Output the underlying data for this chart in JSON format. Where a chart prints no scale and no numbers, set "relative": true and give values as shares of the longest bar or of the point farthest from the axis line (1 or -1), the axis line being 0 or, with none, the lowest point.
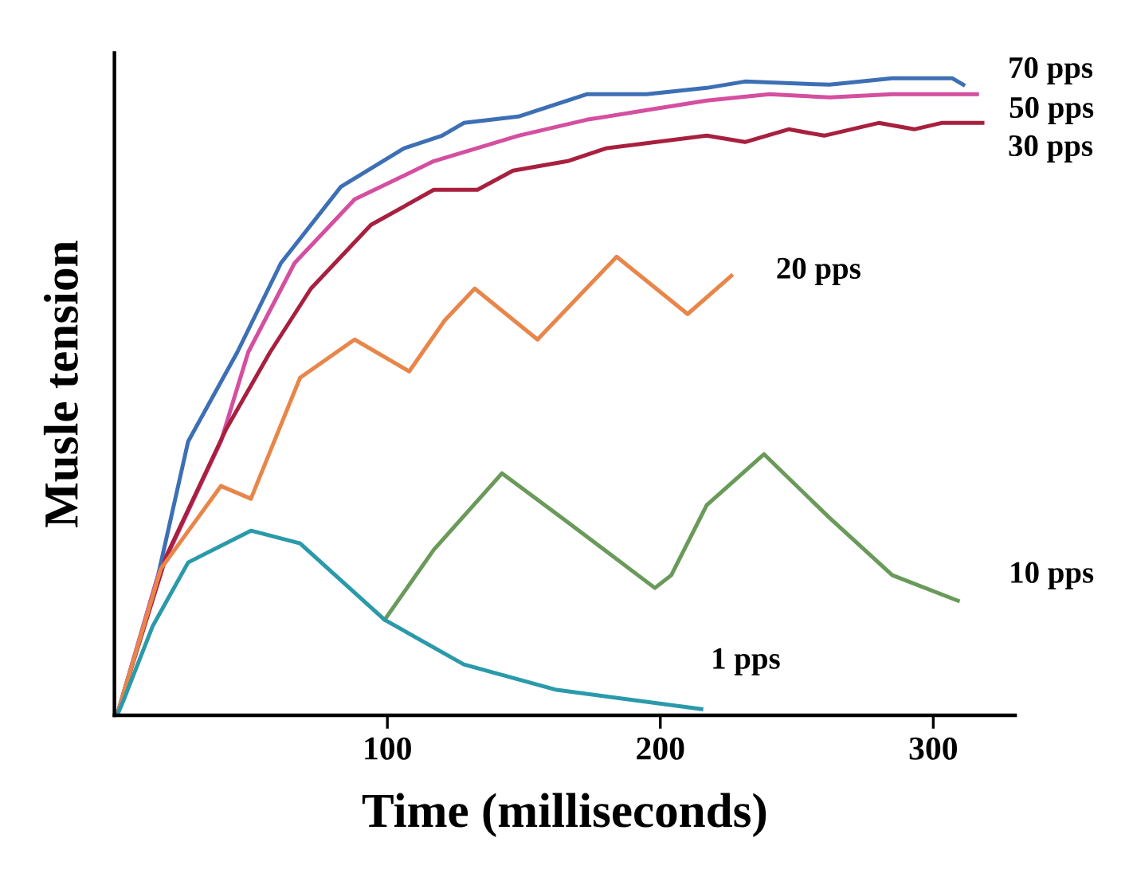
{
  "chart_data": {
    "type": "line",
    "relative": true,
    "xlabel": "Time (milliseconds)",
    "ylabel": "Musle tension",
    "xlim": [
      0,
      330
    ],
    "xticks": [
      100,
      200,
      300
    ],
    "grid": false,
    "legend": false,
    "marker": "none",
    "line_style": "solid",
    "series": [
      {
        "name": "70 pps",
        "color": "#3d6fb4",
        "x": [
          1,
          3,
          16,
          27,
          45,
          61,
          83,
          106,
          120,
          128,
          148,
          173,
          195,
          217,
          231,
          262,
          285,
          307,
          311
        ],
        "values": [
          0,
          0.03,
          0.22,
          0.43,
          0.57,
          0.71,
          0.83,
          0.89,
          0.91,
          0.93,
          0.94,
          0.975,
          0.975,
          0.985,
          0.995,
          0.99,
          1.0,
          1.0,
          0.99
        ]
      },
      {
        "name": "50 pps",
        "color": "#d44fa0",
        "x": [
          1,
          3,
          16,
          39,
          49,
          66,
          88,
          117,
          148,
          173,
          195,
          217,
          240,
          262,
          285,
          316
        ],
        "values": [
          0,
          0.03,
          0.22,
          0.43,
          0.57,
          0.71,
          0.81,
          0.87,
          0.91,
          0.935,
          0.95,
          0.965,
          0.975,
          0.97,
          0.975,
          0.975
        ]
      },
      {
        "name": "30 pps",
        "color": "#a8203f",
        "x": [
          1,
          3,
          19,
          41,
          57,
          72,
          94,
          117,
          133,
          146,
          166,
          180,
          217,
          231,
          247,
          260,
          280,
          293,
          303,
          318
        ],
        "values": [
          0,
          0.03,
          0.25,
          0.45,
          0.57,
          0.67,
          0.77,
          0.825,
          0.825,
          0.855,
          0.87,
          0.89,
          0.91,
          0.9,
          0.92,
          0.91,
          0.93,
          0.92,
          0.93,
          0.93
        ]
      },
      {
        "name": "20 pps",
        "color": "#e8864a",
        "x": [
          1,
          3,
          17,
          39,
          50,
          68,
          88,
          108,
          121,
          132,
          155,
          184,
          210,
          226
        ],
        "values": [
          0,
          0.03,
          0.23,
          0.36,
          0.34,
          0.53,
          0.59,
          0.54,
          0.62,
          0.67,
          0.59,
          0.72,
          0.63,
          0.69
        ]
      },
      {
        "name": "10 pps",
        "color": "#6a9a5a",
        "x": [
          99,
          117,
          142,
          164,
          198,
          204,
          217,
          238,
          262,
          285,
          309
        ],
        "values": [
          0.15,
          0.26,
          0.38,
          0.31,
          0.2,
          0.22,
          0.33,
          0.41,
          0.31,
          0.22,
          0.18
        ]
      },
      {
        "name": "1 pps",
        "color": "#2a9aaa",
        "x": [
          1,
          3,
          14,
          27,
          50,
          68,
          99,
          128,
          162,
          215
        ],
        "values": [
          0,
          0.02,
          0.14,
          0.24,
          0.29,
          0.27,
          0.15,
          0.08,
          0.04,
          0.01
        ]
      }
    ]
  }
}
